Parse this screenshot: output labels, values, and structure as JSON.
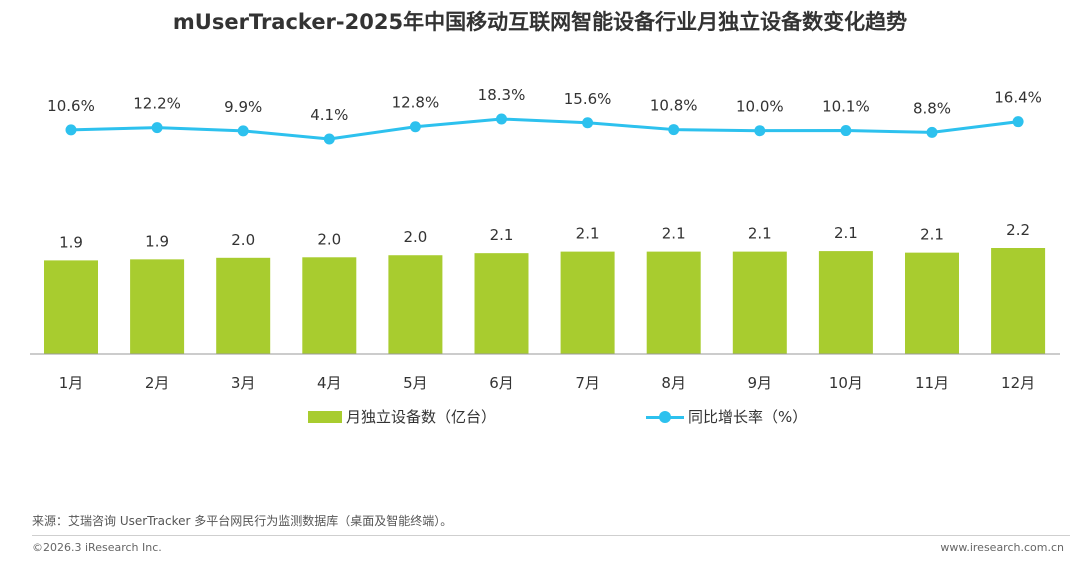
{
  "header": {
    "title": "mUserTracker-2025年中国移动互联网智能设备行业月独立设备数变化趋势"
  },
  "chart_data": {
    "type": "bar",
    "categories": [
      "1月",
      "2月",
      "3月",
      "4月",
      "5月",
      "6月",
      "7月",
      "8月",
      "9月",
      "10月",
      "11月",
      "12月"
    ],
    "series": [
      {
        "name": "月独立设备数（亿台）",
        "type": "bar",
        "values": [
          1.93,
          1.95,
          1.98,
          1.99,
          2.03,
          2.07,
          2.1,
          2.1,
          2.1,
          2.11,
          2.08,
          2.17
        ],
        "labels": [
          "1.9",
          "1.9",
          "2.0",
          "2.0",
          "2.0",
          "2.1",
          "2.1",
          "2.1",
          "2.1",
          "2.1",
          "2.1",
          "2.2"
        ],
        "color": "#a8cc2f"
      },
      {
        "name": "同比增长率（%）",
        "type": "line",
        "values": [
          10.6,
          12.2,
          9.9,
          4.1,
          12.8,
          18.3,
          15.6,
          10.8,
          10.0,
          10.1,
          8.8,
          16.4
        ],
        "labels": [
          "10.6%",
          "12.2%",
          "9.9%",
          "4.1%",
          "12.8%",
          "18.3%",
          "15.6%",
          "10.8%",
          "10.0%",
          "10.1%",
          "8.8%",
          "16.4%"
        ],
        "color": "#2dc1ee"
      }
    ]
  },
  "legend": {
    "bar_label": "月独立设备数（亿台）",
    "line_label": "同比增长率（%）"
  },
  "footer": {
    "source": "来源：艾瑞咨询 UserTracker 多平台网民行为监测数据库（桌面及智能终端）。",
    "copyright": "©2026.3 iResearch Inc.",
    "website": "www.iresearch.com.cn"
  }
}
